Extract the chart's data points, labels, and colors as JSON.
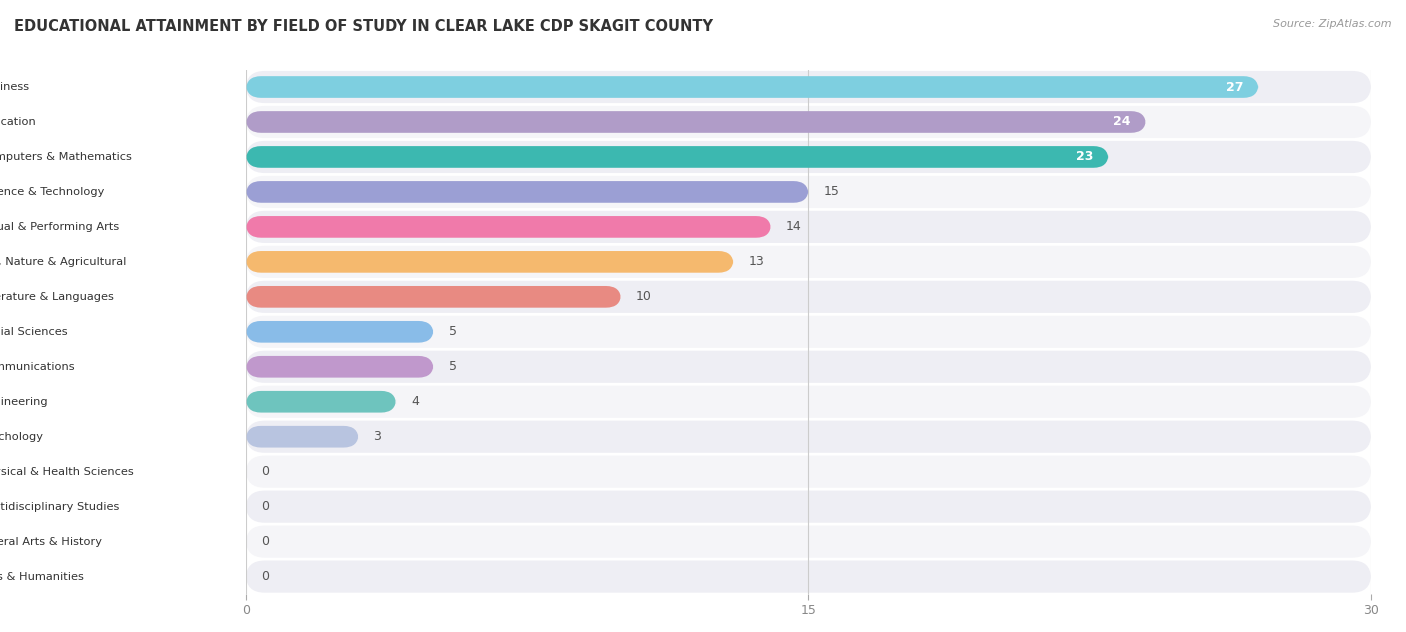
{
  "title": "EDUCATIONAL ATTAINMENT BY FIELD OF STUDY IN CLEAR LAKE CDP SKAGIT COUNTY",
  "source": "Source: ZipAtlas.com",
  "categories": [
    "Business",
    "Education",
    "Computers & Mathematics",
    "Science & Technology",
    "Visual & Performing Arts",
    "Bio, Nature & Agricultural",
    "Literature & Languages",
    "Social Sciences",
    "Communications",
    "Engineering",
    "Psychology",
    "Physical & Health Sciences",
    "Multidisciplinary Studies",
    "Liberal Arts & History",
    "Arts & Humanities"
  ],
  "values": [
    27,
    24,
    23,
    15,
    14,
    13,
    10,
    5,
    5,
    4,
    3,
    0,
    0,
    0,
    0
  ],
  "bar_colors": [
    "#7ecfe0",
    "#b09cc8",
    "#3cb8b0",
    "#9b9fd4",
    "#f07aaa",
    "#f5b96e",
    "#e88a82",
    "#89bce8",
    "#c098cc",
    "#6ec4be",
    "#b8c4e0",
    "#f07aaa",
    "#f5b96e",
    "#e88a82",
    "#89bce8"
  ],
  "dot_colors": [
    "#5ab8d4",
    "#8e74be",
    "#25a89e",
    "#7278c4",
    "#e84d90",
    "#f09030",
    "#d85e56",
    "#5098d8",
    "#a060c0",
    "#30a8a0",
    "#8898b8",
    "#e84d90",
    "#f09030",
    "#d85e56",
    "#5098d8"
  ],
  "row_bg_colors": [
    "#eeeef4",
    "#f5f5f8",
    "#eeeef4",
    "#f5f5f8",
    "#eeeef4",
    "#f5f5f8",
    "#eeeef4",
    "#f5f5f8",
    "#eeeef4",
    "#f5f5f8",
    "#eeeef4",
    "#f5f5f8",
    "#eeeef4",
    "#f5f5f8",
    "#eeeef4"
  ],
  "xlim": [
    0,
    30
  ],
  "xticks": [
    0,
    15,
    30
  ],
  "value_inside_threshold": 20,
  "background_color": "#ffffff"
}
